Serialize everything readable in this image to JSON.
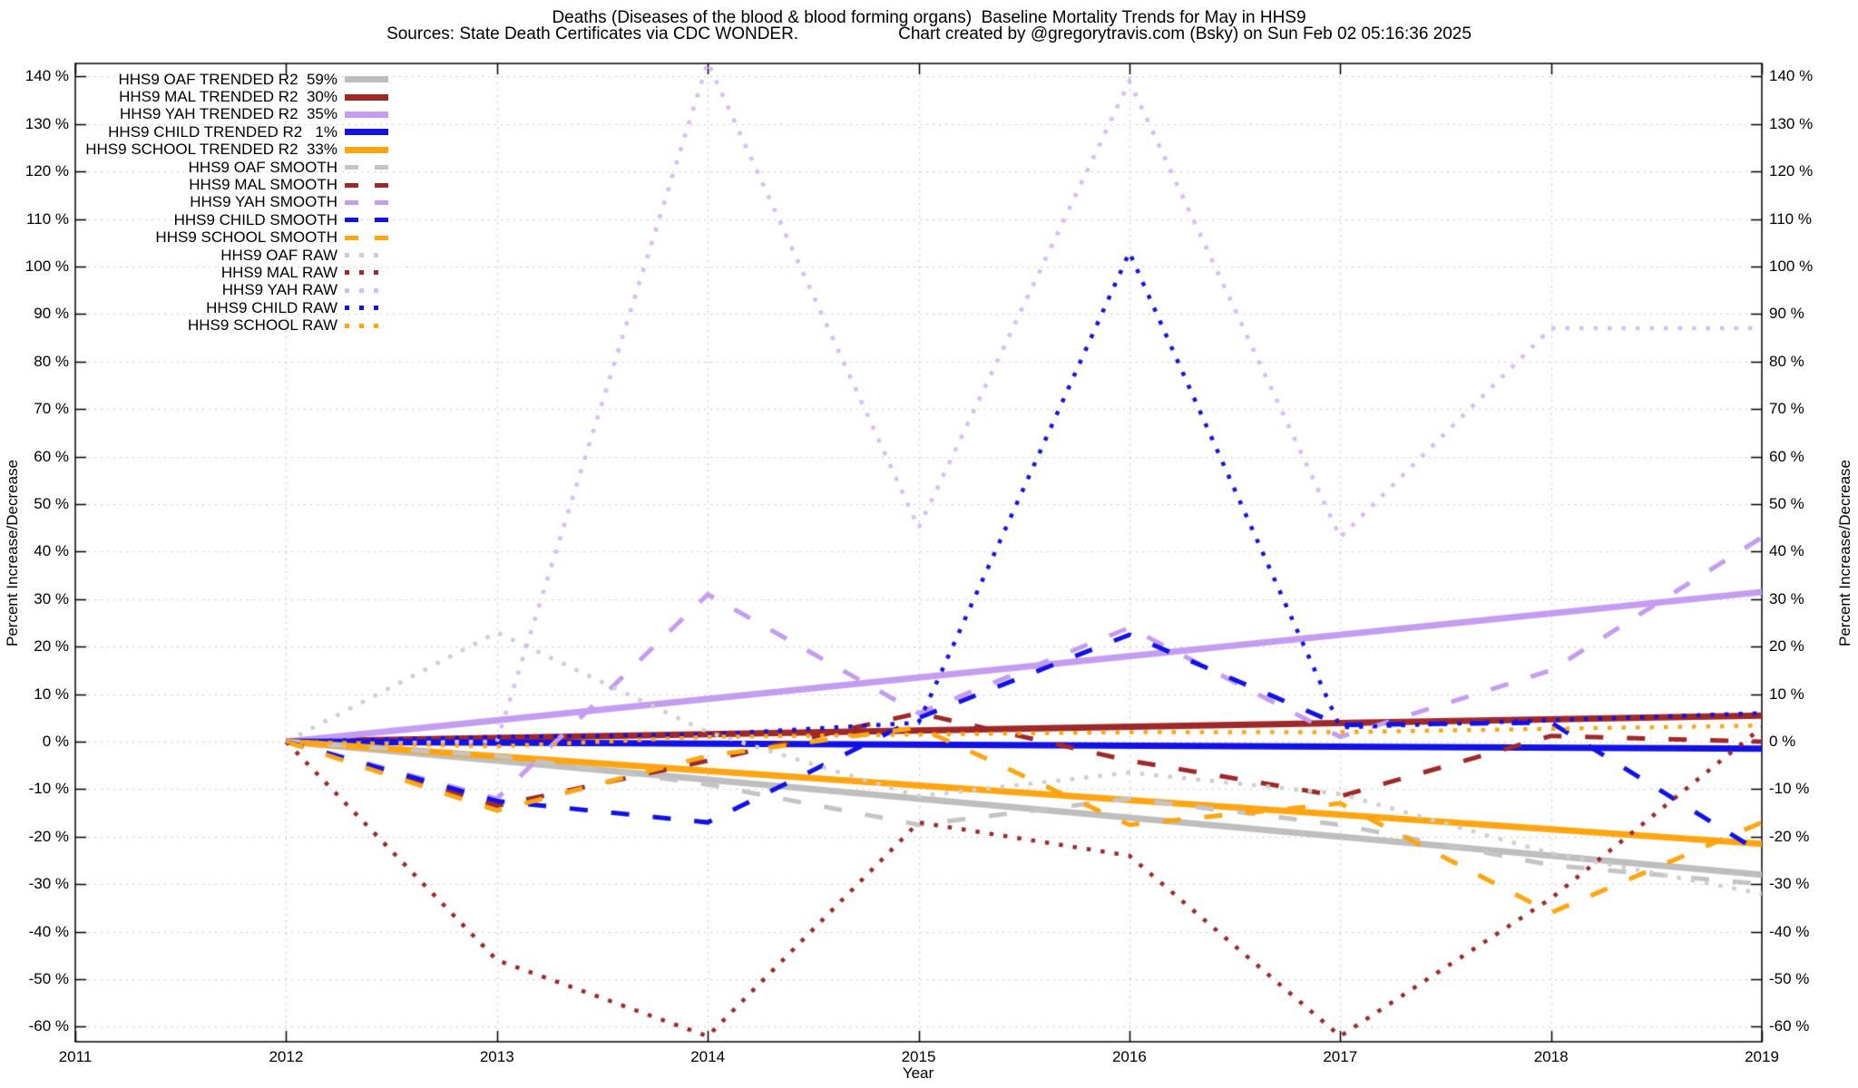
{
  "header": {
    "title": "Deaths (Diseases of the blood & blood forming organs)  Baseline Mortality Trends for May in HHS9",
    "subtitle_sources": "Sources: State Death Certificates via CDC WONDER.",
    "subtitle_credit": "Chart created by @gregorytravis.com (Bsky) on Sun Feb 02 05:16:36 2025"
  },
  "chart_data": {
    "type": "line",
    "title": "Deaths (Diseases of the blood & blood forming organs)  Baseline Mortality Trends for May in HHS9",
    "xlabel": "Year",
    "ylabel": "Percent Increase/Decrease",
    "y2label": "Percent Increase/Decrease",
    "xlim": [
      2011,
      2019
    ],
    "ylim": [
      -63.2,
      142.7
    ],
    "xticks": [
      2011,
      2012,
      2013,
      2014,
      2015,
      2016,
      2017,
      2018,
      2019
    ],
    "yticks": [
      -60,
      -50,
      -40,
      -30,
      -20,
      -10,
      0,
      10,
      20,
      30,
      40,
      50,
      60,
      70,
      80,
      90,
      100,
      110,
      120,
      130,
      140
    ],
    "ytick_suffix": " %",
    "grid": true,
    "legend_position": "top-left-inside",
    "x_years": [
      2012,
      2013,
      2014,
      2015,
      2016,
      2017,
      2018,
      2019
    ],
    "series": [
      {
        "id": "oaf-trended",
        "label": "HHS9 OAF TRENDED R2  59%",
        "style": "solid",
        "color": "#bebebe",
        "x": [
          2012,
          2019
        ],
        "values": [
          0,
          -28
        ]
      },
      {
        "id": "mal-trended",
        "label": "HHS9 MAL TRENDED R2  30%",
        "style": "solid",
        "color": "#9f2828",
        "x": [
          2012,
          2019
        ],
        "values": [
          0,
          5.5
        ]
      },
      {
        "id": "yah-trended",
        "label": "HHS9 YAH TRENDED R2  35%",
        "style": "solid",
        "color": "#c49cf2",
        "x": [
          2012,
          2019
        ],
        "values": [
          0,
          31.5
        ]
      },
      {
        "id": "child-trended",
        "label": "HHS9 CHILD TRENDED R2   1%",
        "style": "solid",
        "color": "#1212e8",
        "x": [
          2012,
          2019
        ],
        "values": [
          0,
          -1.5
        ]
      },
      {
        "id": "school-trended",
        "label": "HHS9 SCHOOL TRENDED R2  33%",
        "style": "solid",
        "color": "#ffa510",
        "x": [
          2012,
          2019
        ],
        "values": [
          0,
          -21.5
        ]
      },
      {
        "id": "oaf-smooth",
        "label": "HHS9 OAF SMOOTH",
        "style": "dashed",
        "color": "#c4c4c4",
        "values": [
          0,
          -3,
          -9,
          -17.5,
          -12,
          -17.5,
          -26,
          -30
        ]
      },
      {
        "id": "mal-smooth",
        "label": "HHS9 MAL SMOOTH",
        "style": "dashed",
        "color": "#9f2828",
        "values": [
          0,
          -13.5,
          -4,
          6,
          -4,
          -11.5,
          1.2,
          0
        ]
      },
      {
        "id": "yah-smooth",
        "label": "HHS9 YAH SMOOTH",
        "style": "dashed",
        "color": "#c49cf2",
        "values": [
          0,
          -12,
          31,
          6,
          24,
          1,
          15,
          43
        ]
      },
      {
        "id": "child-smooth",
        "label": "HHS9 CHILD SMOOTH",
        "style": "dashed",
        "color": "#1212e8",
        "values": [
          0,
          -12.5,
          -17,
          5,
          22.5,
          3.5,
          4,
          -23.5
        ]
      },
      {
        "id": "school-smooth",
        "label": "HHS9 SCHOOL SMOOTH",
        "style": "dashed",
        "color": "#ffa510",
        "values": [
          0,
          -14.5,
          -3,
          3,
          -17.5,
          -13,
          -36,
          -17
        ]
      },
      {
        "id": "oaf-raw",
        "label": "HHS9 OAF RAW",
        "style": "dotted",
        "color": "#cfcfcf",
        "values": [
          0,
          23,
          2,
          -11.5,
          -6.5,
          -11,
          -23.5,
          -32
        ]
      },
      {
        "id": "mal-raw",
        "label": "HHS9 MAL RAW",
        "style": "dotted",
        "color": "#9f2828",
        "values": [
          0,
          -46,
          -62,
          -17,
          -24,
          -62,
          -33,
          3
        ]
      },
      {
        "id": "yah-raw",
        "label": "HHS9 YAH RAW",
        "style": "dotted",
        "color": "#d8bcf8",
        "values": [
          0,
          0,
          143,
          45,
          139,
          43,
          87,
          87
        ]
      },
      {
        "id": "child-raw",
        "label": "HHS9 CHILD RAW",
        "style": "dotted",
        "color": "#1212e8",
        "values": [
          0,
          1,
          1.5,
          4,
          103,
          3,
          4.5,
          6
        ]
      },
      {
        "id": "school-raw",
        "label": "HHS9 SCHOOL RAW",
        "style": "dotted",
        "color": "#ffa510",
        "values": [
          0,
          -1,
          1,
          1.5,
          2,
          2,
          2.7,
          3.4
        ]
      }
    ]
  }
}
